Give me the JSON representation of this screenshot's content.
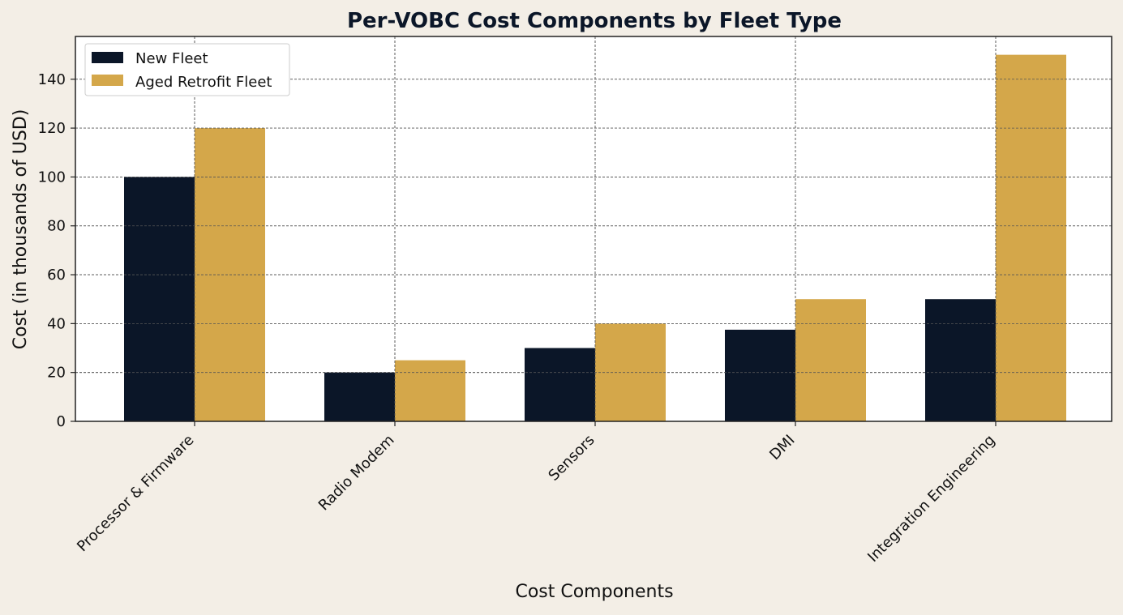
{
  "chart_data": {
    "type": "bar",
    "title": "Per-VOBC Cost Components by Fleet Type",
    "xlabel": "Cost Components",
    "ylabel": "Cost (in thousands of USD)",
    "categories": [
      "Processor & Firmware",
      "Radio Modem",
      "Sensors",
      "DMI",
      "Integration Engineering"
    ],
    "series": [
      {
        "name": "New Fleet",
        "values": [
          100,
          20,
          30,
          37.5,
          50
        ],
        "color": "#0b1628"
      },
      {
        "name": "Aged Retrofit Fleet",
        "values": [
          120,
          25,
          40,
          50,
          150
        ],
        "color": "#d4a74a"
      }
    ],
    "yticks": [
      0,
      20,
      40,
      60,
      80,
      100,
      120,
      140
    ],
    "ylim": [
      0,
      157.5
    ],
    "grid": true,
    "legend_position": "top-left"
  },
  "colors": {
    "background": "#f3eee6",
    "plot_background": "#ffffff",
    "grid": "#555555",
    "axis": "#222222",
    "title": "#0b1628",
    "text": "#111111"
  }
}
